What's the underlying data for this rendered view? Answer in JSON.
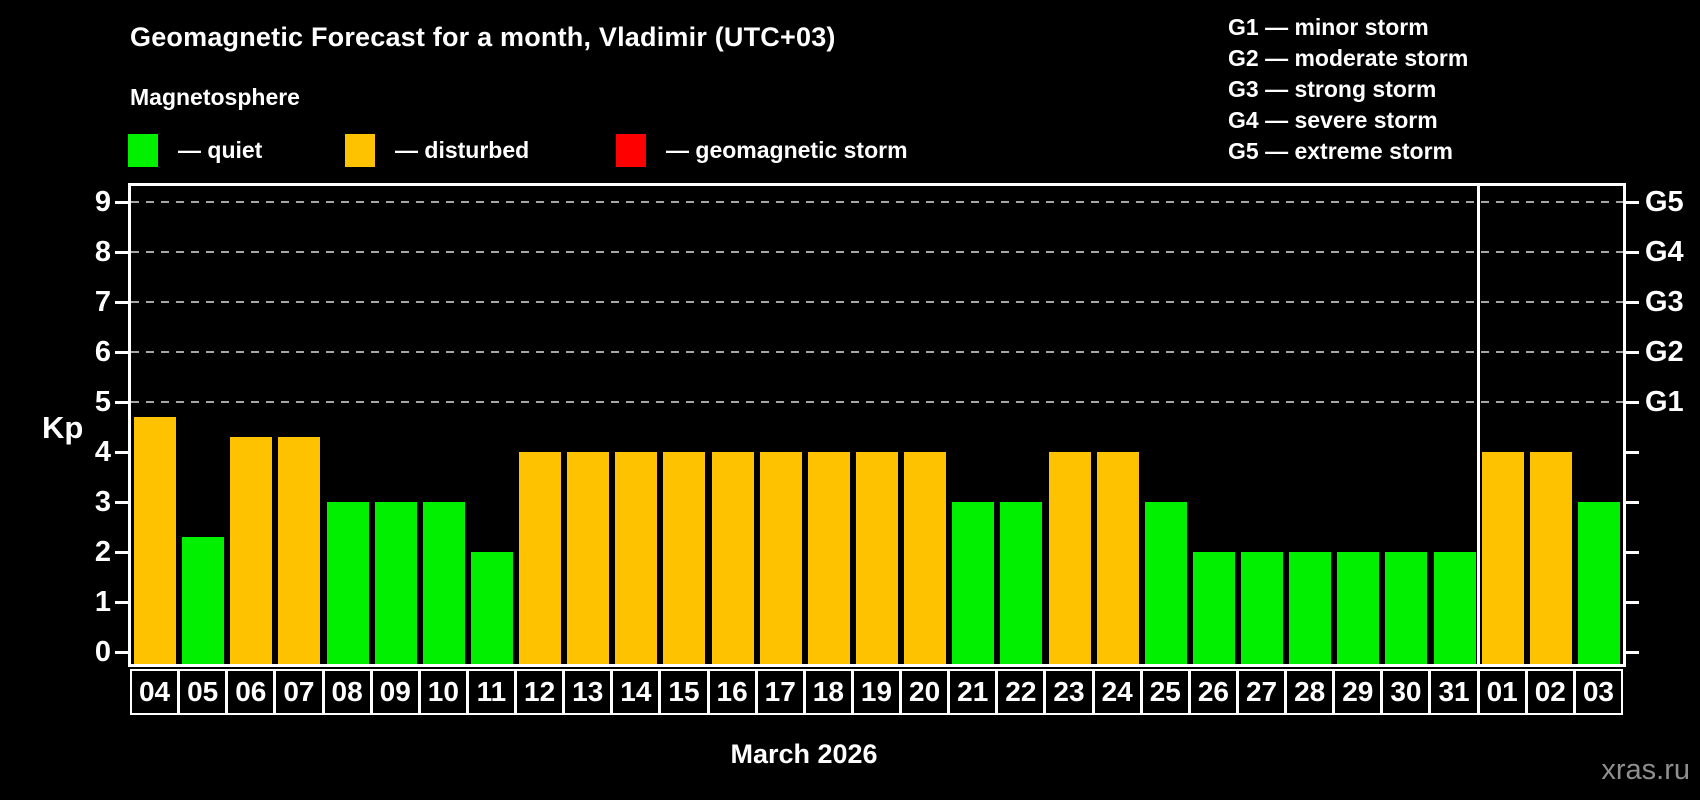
{
  "header": {
    "title": "Geomagnetic Forecast for a month, Vladimir (UTC+03)",
    "subtitle": "Magnetosphere"
  },
  "legend": {
    "dash": "—",
    "items": [
      {
        "state": "quiet",
        "label": "quiet",
        "color": "#00f000"
      },
      {
        "state": "disturbed",
        "label": "disturbed",
        "color": "#ffc200"
      },
      {
        "state": "storm",
        "label": "geomagnetic storm",
        "color": "#ff0000"
      }
    ]
  },
  "g_scale_legend": {
    "dash": "—",
    "items": [
      {
        "code": "G1",
        "label": "minor storm"
      },
      {
        "code": "G2",
        "label": "moderate storm"
      },
      {
        "code": "G3",
        "label": "strong storm"
      },
      {
        "code": "G4",
        "label": "severe storm"
      },
      {
        "code": "G5",
        "label": "extreme storm"
      }
    ]
  },
  "watermark": "xras.ru",
  "chart_data": {
    "type": "bar",
    "title": "Geomagnetic Forecast for a month, Vladimir (UTC+03)",
    "x_axis_title": "March 2026",
    "y_axis_label": "Kp",
    "ylim": [
      0,
      9
    ],
    "y_ticks": [
      0,
      1,
      2,
      3,
      4,
      5,
      6,
      7,
      8,
      9
    ],
    "gridlines_at": [
      5,
      6,
      7,
      8,
      9
    ],
    "grid_color": "#a6a6a6",
    "right_axis_labels": [
      {
        "kp": 5,
        "label": "G1"
      },
      {
        "kp": 6,
        "label": "G2"
      },
      {
        "kp": 7,
        "label": "G3"
      },
      {
        "kp": 8,
        "label": "G4"
      },
      {
        "kp": 9,
        "label": "G5"
      }
    ],
    "separator_after_index": 27,
    "categories": [
      "04",
      "05",
      "06",
      "07",
      "08",
      "09",
      "10",
      "11",
      "12",
      "13",
      "14",
      "15",
      "16",
      "17",
      "18",
      "19",
      "20",
      "21",
      "22",
      "23",
      "24",
      "25",
      "26",
      "27",
      "28",
      "29",
      "30",
      "31",
      "01",
      "02",
      "03"
    ],
    "values": [
      4.7,
      2.3,
      4.3,
      4.3,
      3,
      3,
      3,
      2,
      4,
      4,
      4,
      4,
      4,
      4,
      4,
      4,
      4,
      3,
      3,
      4,
      4,
      3,
      2,
      2,
      2,
      2,
      2,
      2,
      4,
      4,
      3
    ],
    "states": [
      "disturbed",
      "quiet",
      "disturbed",
      "disturbed",
      "quiet",
      "quiet",
      "quiet",
      "quiet",
      "disturbed",
      "disturbed",
      "disturbed",
      "disturbed",
      "disturbed",
      "disturbed",
      "disturbed",
      "disturbed",
      "disturbed",
      "quiet",
      "quiet",
      "disturbed",
      "disturbed",
      "quiet",
      "quiet",
      "quiet",
      "quiet",
      "quiet",
      "quiet",
      "quiet",
      "disturbed",
      "disturbed",
      "quiet"
    ],
    "colors": {
      "quiet": "#00f000",
      "disturbed": "#ffc200",
      "storm": "#ff0000"
    }
  }
}
